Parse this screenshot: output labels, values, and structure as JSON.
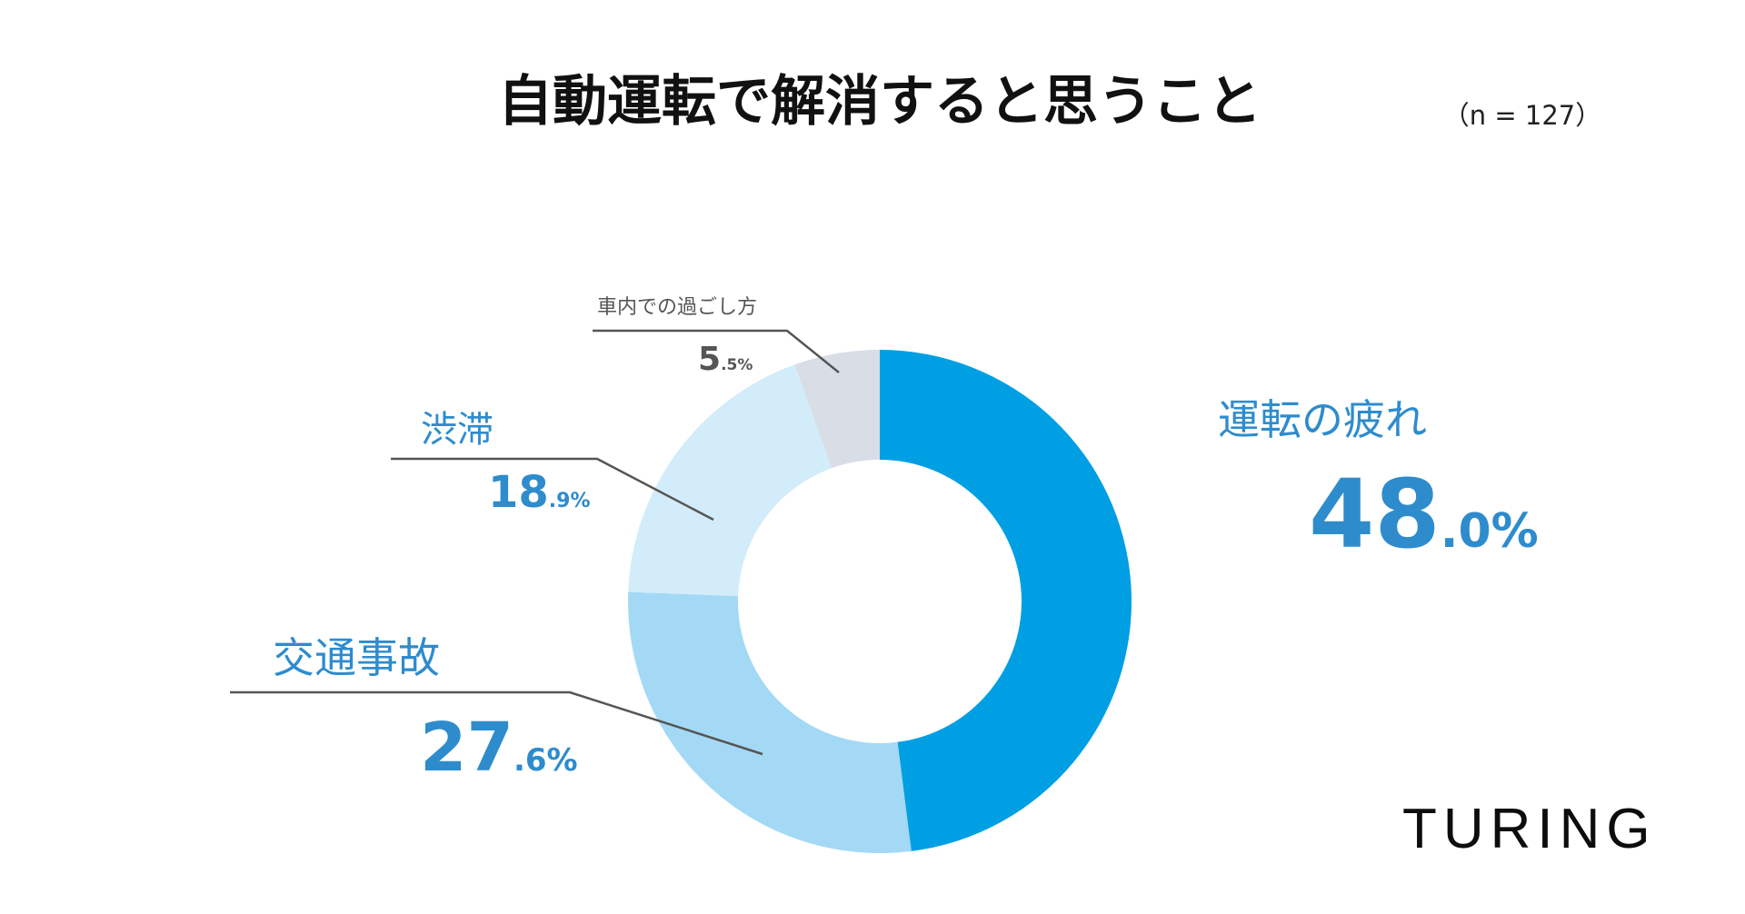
{
  "title": "自動運転で解消すると思うこと",
  "sample_size": "（n = 127）",
  "logo": "TURING",
  "colors": {
    "background": "#ffffff",
    "label_blue": "#2e8ccd",
    "label_gray": "#555555",
    "leader_line": "#555555"
  },
  "chart_data": {
    "type": "pie",
    "donut": true,
    "title": "自動運転で解消すると思うこと",
    "unit": "%",
    "categories": [
      "運転の疲れ",
      "交通事故",
      "渋滞",
      "車内での過ごし方"
    ],
    "values": [
      48.0,
      27.6,
      18.9,
      5.5
    ],
    "value_labels": [
      {
        "int": "48",
        "dec": ".0%"
      },
      {
        "int": "27",
        "dec": ".6%"
      },
      {
        "int": "18",
        "dec": ".9%"
      },
      {
        "int": "5",
        "dec": ".5%"
      }
    ],
    "colors": [
      "#009fe4",
      "#a3d9f5",
      "#d3ecf9",
      "#d8dde6"
    ],
    "start_angle": "12 o'clock",
    "direction": "clockwise",
    "legend": "none (direct labels)"
  }
}
